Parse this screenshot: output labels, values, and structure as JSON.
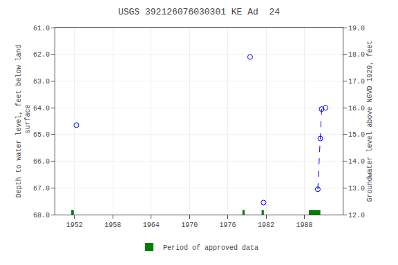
{
  "chart_data": {
    "type": "scatter",
    "title": "USGS 392126076030301 KE Ad  24",
    "y_label": "Depth to water level, feet below land\n surface",
    "y2_label": "Groundwater level above NGVD 1929, feet",
    "xlim": [
      1949,
      1994
    ],
    "xticks": [
      1952,
      1958,
      1964,
      1970,
      1976,
      1982,
      1988
    ],
    "ylim": [
      68.0,
      61.0
    ],
    "yticks": [
      {
        "value": 61.0,
        "label": "61.0"
      },
      {
        "value": 62.0,
        "label": "62.0"
      },
      {
        "value": 63.0,
        "label": "63.0"
      },
      {
        "value": 64.0,
        "label": "64.0"
      },
      {
        "value": 65.0,
        "label": "65.0"
      },
      {
        "value": 66.0,
        "label": "66.0"
      },
      {
        "value": 67.0,
        "label": "67.0"
      },
      {
        "value": 68.0,
        "label": "68.0"
      }
    ],
    "y2lim": [
      12.0,
      19.0
    ],
    "y2ticks": [
      {
        "value": 12.0,
        "label": "12.0"
      },
      {
        "value": 13.0,
        "label": "13.0"
      },
      {
        "value": 14.0,
        "label": "14.0"
      },
      {
        "value": 15.0,
        "label": "15.0"
      },
      {
        "value": 16.0,
        "label": "16.0"
      },
      {
        "value": 17.0,
        "label": "17.0"
      },
      {
        "value": 18.0,
        "label": "18.0"
      },
      {
        "value": 19.0,
        "label": "19.0"
      }
    ],
    "grid": true,
    "legend": "bottom",
    "series": [
      {
        "type": "scatter",
        "color": "#0000ff",
        "marker": "circle-open",
        "x": [
          1952.3,
          1979.5,
          1981.6
        ],
        "values": [
          64.65,
          62.1,
          67.55
        ]
      },
      {
        "type": "line",
        "color": "#0000ff",
        "marker": "circle-open",
        "line_style": "dashed",
        "x": [
          1990.1,
          1990.5,
          1990.7,
          1991.3
        ],
        "values": [
          67.05,
          65.15,
          64.05,
          64.0
        ]
      },
      {
        "type": "bar",
        "name": "Period of approved data",
        "color": "#008000",
        "x": [
          1951.5,
          1978.3,
          1981.3,
          1988.7
        ],
        "widths": [
          0.4,
          0.35,
          0.35,
          1.8
        ]
      }
    ]
  }
}
